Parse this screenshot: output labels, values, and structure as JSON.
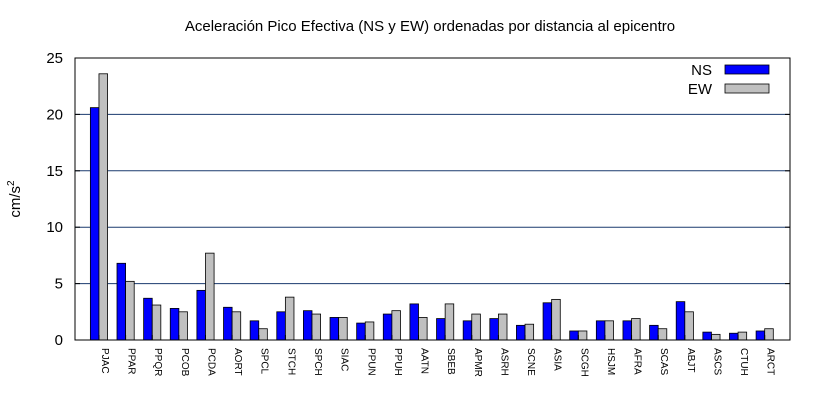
{
  "chart_data": {
    "type": "bar",
    "title": "Aceleración Pico Efectiva (NS y EW) ordenadas por distancia al epicentro",
    "xlabel": "",
    "ylabel": "cm/s",
    "ylabel_superscript": "2",
    "ylim": [
      0,
      25
    ],
    "yticks": [
      "0",
      "5",
      "10",
      "15",
      "20",
      "25"
    ],
    "grid": "horizontal",
    "legend_position": "top-right",
    "categories": [
      "PJAC",
      "PPAR",
      "PPQR",
      "PCOB",
      "PCDA",
      "AORT",
      "SPCL",
      "STCH",
      "SPCH",
      "SIAC",
      "PPUN",
      "PPUH",
      "AATN",
      "SBEB",
      "APMR",
      "ASRH",
      "SCNE",
      "ASIA",
      "SCGH",
      "HSJM",
      "AFRA",
      "SCAS",
      "ABJT",
      "ASCS",
      "CTUH",
      "ARCT"
    ],
    "series": [
      {
        "name": "NS",
        "color": "#0000ff",
        "values": [
          20.6,
          6.8,
          3.7,
          2.8,
          4.4,
          2.9,
          1.7,
          2.5,
          2.6,
          2.0,
          1.5,
          2.3,
          3.2,
          1.9,
          1.7,
          1.9,
          1.3,
          3.3,
          0.8,
          1.7,
          1.7,
          1.3,
          3.4,
          0.7,
          0.6,
          0.8
        ]
      },
      {
        "name": "EW",
        "color": "#c0c0c0",
        "values": [
          23.6,
          5.2,
          3.1,
          2.5,
          7.7,
          2.5,
          1.0,
          3.8,
          2.3,
          2.0,
          1.6,
          2.6,
          2.0,
          3.2,
          2.3,
          2.3,
          1.4,
          3.6,
          0.8,
          1.7,
          1.9,
          1.0,
          2.5,
          0.5,
          0.7,
          1.0
        ]
      }
    ]
  }
}
